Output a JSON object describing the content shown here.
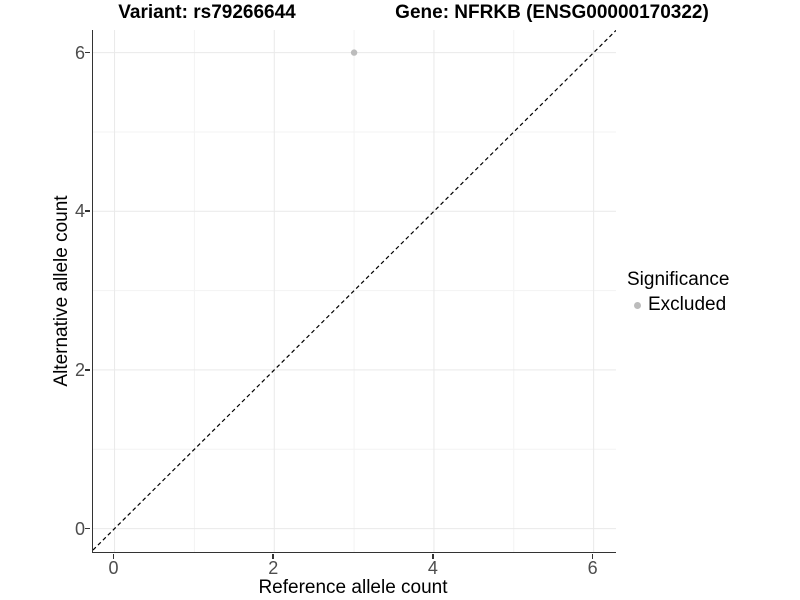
{
  "titles": {
    "variant": "Variant: rs79266644",
    "gene": "Gene: NFRKB (ENSG00000170322)"
  },
  "chart_data": {
    "type": "scatter",
    "xlabel": "Reference allele count",
    "ylabel": "Alternative allele count",
    "x_ticks": [
      0,
      2,
      4,
      6
    ],
    "y_ticks": [
      0,
      2,
      4,
      6
    ],
    "x_minor_ticks": [
      1,
      3,
      5
    ],
    "y_minor_ticks": [
      1,
      3,
      5
    ],
    "xlim": [
      -0.27,
      6.28
    ],
    "ylim": [
      -0.295,
      6.285
    ],
    "grid": true,
    "series": [
      {
        "name": "Excluded",
        "color": "#bcbcbc",
        "points": [
          {
            "x": 3,
            "y": 6
          }
        ]
      }
    ],
    "reference_line": {
      "type": "identity",
      "style": "dashed",
      "color": "#000000"
    },
    "legend": {
      "title": "Significance",
      "position": "right",
      "items": [
        {
          "label": "Excluded",
          "color": "#bcbcbc"
        }
      ]
    },
    "colors": {
      "major_grid": "#e9e9e9",
      "minor_grid": "#f3f3f3",
      "axis_line": "#333333",
      "tick_text": "#4d4d4d"
    }
  }
}
